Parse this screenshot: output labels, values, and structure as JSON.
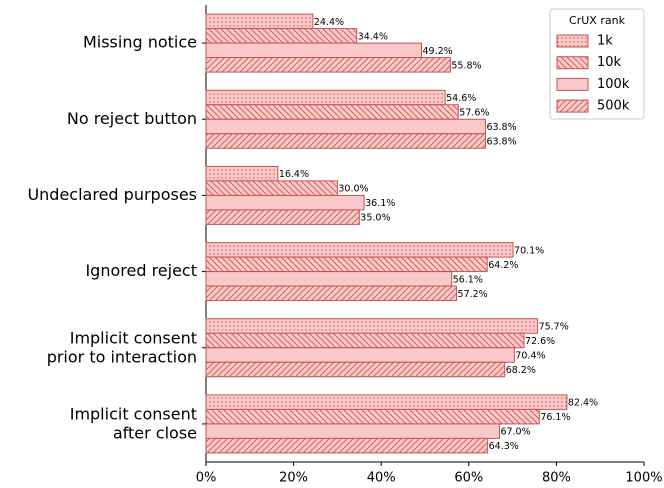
{
  "chart_data": {
    "type": "barh",
    "categories": [
      "Missing notice",
      "No reject button",
      "Undeclared purposes",
      "Ignored reject",
      "Implicit consent\nprior to interaction",
      "Implicit consent\nafter close"
    ],
    "legend_title": "CrUX rank",
    "legend": "upper right",
    "series": [
      {
        "name": "1k",
        "color": "#f9c9c9",
        "edge": "#c8524e",
        "hatch": "dots",
        "values": [
          24.4,
          54.6,
          16.4,
          70.1,
          75.7,
          82.4
        ],
        "value_labels": [
          "24.4%",
          "54.6%",
          "16.4%",
          "70.1%",
          "75.7%",
          "82.4%"
        ]
      },
      {
        "name": "10k",
        "color": "#f9c9c9",
        "edge": "#c8524e",
        "hatch": "backslash",
        "values": [
          34.4,
          57.6,
          30.0,
          64.2,
          72.6,
          76.1
        ],
        "value_labels": [
          "34.4%",
          "57.6%",
          "30.0%",
          "64.2%",
          "72.6%",
          "76.1%"
        ]
      },
      {
        "name": "100k",
        "color": "#f9c9c9",
        "edge": "#c8524e",
        "hatch": "none",
        "values": [
          49.2,
          63.8,
          36.1,
          56.1,
          70.4,
          67.0
        ],
        "value_labels": [
          "49.2%",
          "63.8%",
          "36.1%",
          "56.1%",
          "70.4%",
          "67.0%"
        ]
      },
      {
        "name": "500k",
        "color": "#f9c9c9",
        "edge": "#c8524e",
        "hatch": "slash",
        "values": [
          55.8,
          63.8,
          35.0,
          57.2,
          68.2,
          64.3
        ],
        "value_labels": [
          "55.8%",
          "63.8%",
          "35.0%",
          "57.2%",
          "68.2%",
          "64.3%"
        ]
      }
    ],
    "xlim": [
      0,
      100
    ],
    "xticks": [
      {
        "value": 0,
        "label": "0%"
      },
      {
        "value": 20,
        "label": "20%"
      },
      {
        "value": 40,
        "label": "40%"
      },
      {
        "value": 60,
        "label": "60%"
      },
      {
        "value": 80,
        "label": "80%"
      },
      {
        "value": 100,
        "label": "100%"
      }
    ]
  }
}
